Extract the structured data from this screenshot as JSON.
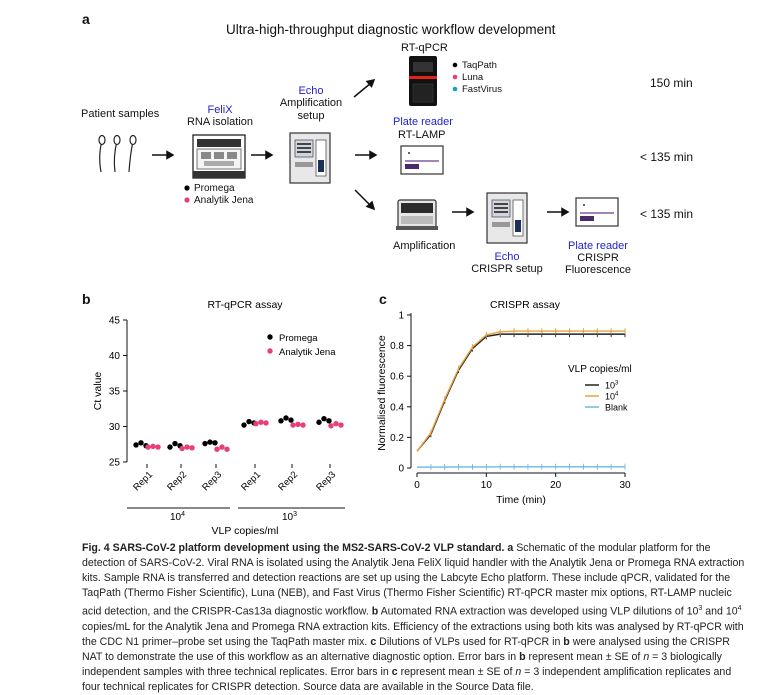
{
  "panel_a": {
    "label": "a",
    "title": "Ultra-high-throughput diagnostic workflow development",
    "patient_samples": "Patient samples",
    "felix": "FeliX",
    "rna_isolation": "RNA isolation",
    "kits": [
      "Promega",
      "Analytik Jena"
    ],
    "echo": "Echo",
    "amp_setup": "Amplification setup",
    "rtqpcr": "RT-qPCR",
    "mixes": [
      "TaqPath",
      "Luna",
      "FastVirus"
    ],
    "plate_reader": "Plate reader",
    "rtlamp": "RT-LAMP",
    "amplification": "Amplification",
    "crispr_setup": "CRISPR setup",
    "crispr": "CRISPR",
    "fluorescence": "Fluorescence",
    "times": [
      "150 min",
      "< 135 min",
      "< 135 min"
    ],
    "colors": {
      "promega": "#000000",
      "jena": "#e83e7a",
      "fastvirus": "#1a9fb8",
      "echo_text": "#2222cc"
    }
  },
  "panel_b": {
    "label": "b",
    "chart_data": {
      "type": "scatter",
      "title": "RT-qPCR assay",
      "ylabel": "Ct value",
      "xlabel": "VLP copies/ml",
      "ylim": [
        25,
        45
      ],
      "yticks": [
        25,
        30,
        35,
        40,
        45
      ],
      "groups": [
        "10",
        "10"
      ],
      "group_exponents": [
        "4",
        "3"
      ],
      "categories": [
        "Rep1",
        "Rep2",
        "Rep3",
        "Rep1",
        "Rep2",
        "Rep3"
      ],
      "series": [
        {
          "name": "Promega",
          "color": "#000000",
          "values": [
            [
              27.4,
              27.7,
              27.3
            ],
            [
              27.1,
              27.6,
              27.3
            ],
            [
              27.6,
              27.8,
              27.7
            ],
            [
              30.2,
              30.7,
              30.5
            ],
            [
              30.8,
              31.2,
              30.9
            ],
            [
              30.6,
              31.1,
              30.8
            ]
          ]
        },
        {
          "name": "Analytik Jena",
          "color": "#e83e7a",
          "values": [
            [
              27.1,
              27.2,
              27.1
            ],
            [
              26.9,
              27.1,
              27.0
            ],
            [
              26.8,
              27.1,
              26.8
            ],
            [
              30.4,
              30.6,
              30.5
            ],
            [
              30.2,
              30.3,
              30.2
            ],
            [
              30.1,
              30.4,
              30.2
            ]
          ]
        }
      ]
    }
  },
  "panel_c": {
    "label": "c",
    "chart_data": {
      "type": "line",
      "title": "CRISPR assay",
      "xlabel": "Time (min)",
      "ylabel": "Normalised fluorescence",
      "xlim": [
        0,
        30
      ],
      "ylim": [
        0,
        1
      ],
      "xticks": [
        0,
        10,
        20,
        30
      ],
      "yticks": [
        0,
        0.2,
        0.4,
        0.6,
        0.8,
        1
      ],
      "legend_title": "VLP copies/ml",
      "legend_base": "10",
      "x": [
        0,
        2,
        4,
        6,
        8,
        10,
        12,
        14,
        16,
        18,
        20,
        22,
        24,
        26,
        28,
        30
      ],
      "series": [
        {
          "name": "10",
          "exponent": "3",
          "color": "#222222",
          "values": [
            0.11,
            0.22,
            0.44,
            0.64,
            0.78,
            0.86,
            0.875,
            0.875,
            0.875,
            0.875,
            0.875,
            0.875,
            0.875,
            0.875,
            0.875,
            0.875
          ]
        },
        {
          "name": "10",
          "exponent": "4",
          "color": "#e8a33c",
          "values": [
            0.11,
            0.23,
            0.45,
            0.65,
            0.79,
            0.87,
            0.89,
            0.895,
            0.895,
            0.895,
            0.895,
            0.895,
            0.895,
            0.895,
            0.895,
            0.895
          ]
        },
        {
          "name": "Blank",
          "color": "#6fb8e0",
          "values": [
            0.005,
            0.006,
            0.006,
            0.007,
            0.007,
            0.007,
            0.008,
            0.008,
            0.008,
            0.008,
            0.008,
            0.008,
            0.008,
            0.008,
            0.008,
            0.008
          ]
        }
      ]
    }
  },
  "caption": {
    "title": "Fig. 4 SARS-CoV-2 platform development using the MS2-SARS-CoV-2 VLP standard.",
    "a_label": "a",
    "a_text": " Schematic of the modular platform for the detection of SARS-CoV-2. Viral RNA is isolated using the Analytik Jena FeliX liquid handler with the Analytik Jena or Promega RNA extraction kits. Sample RNA is transferred and detection reactions are set up using the Labcyte Echo platform. These include qPCR, validated for the TaqPath (Thermo Fisher Scientific), Luna (NEB), and Fast Virus (Thermo Fisher Scientific) RT-qPCR master mix options, RT-LAMP nucleic acid detection, and the CRISPR-Cas13a diagnostic workflow.",
    "b_label": "b",
    "b_text_1": " Automated RNA extraction was developed using VLP dilutions of 10",
    "b_sup_1": "3",
    "b_text_2": " and 10",
    "b_sup_2": "4",
    "b_text_3": " copies/mL for the Analytik Jena and Promega RNA extraction kits. Efficiency of the extractions using both kits was analysed by RT-qPCR with the CDC N1 primer–probe set using the TaqPath master mix.",
    "c_label": "c",
    "c_text_1": " Dilutions of VLPs used for RT-qPCR in ",
    "c_b": "b",
    "c_text_2": " were analysed using the CRISPR NAT to demonstrate the use of this workflow as an alternative diagnostic option. Error bars in ",
    "c_b2": "b",
    "c_text_3": " represent mean ± SE of ",
    "c_n": "n",
    "c_text_4": " = 3 biologically independent samples with three technical replicates. Error bars in ",
    "c_c": "c",
    "c_text_5": " represent mean ± SE of ",
    "c_n2": "n",
    "c_text_6": " = 3 independent amplification replicates and four technical replicates for CRISPR detection. Source data are available in the Source Data file."
  }
}
